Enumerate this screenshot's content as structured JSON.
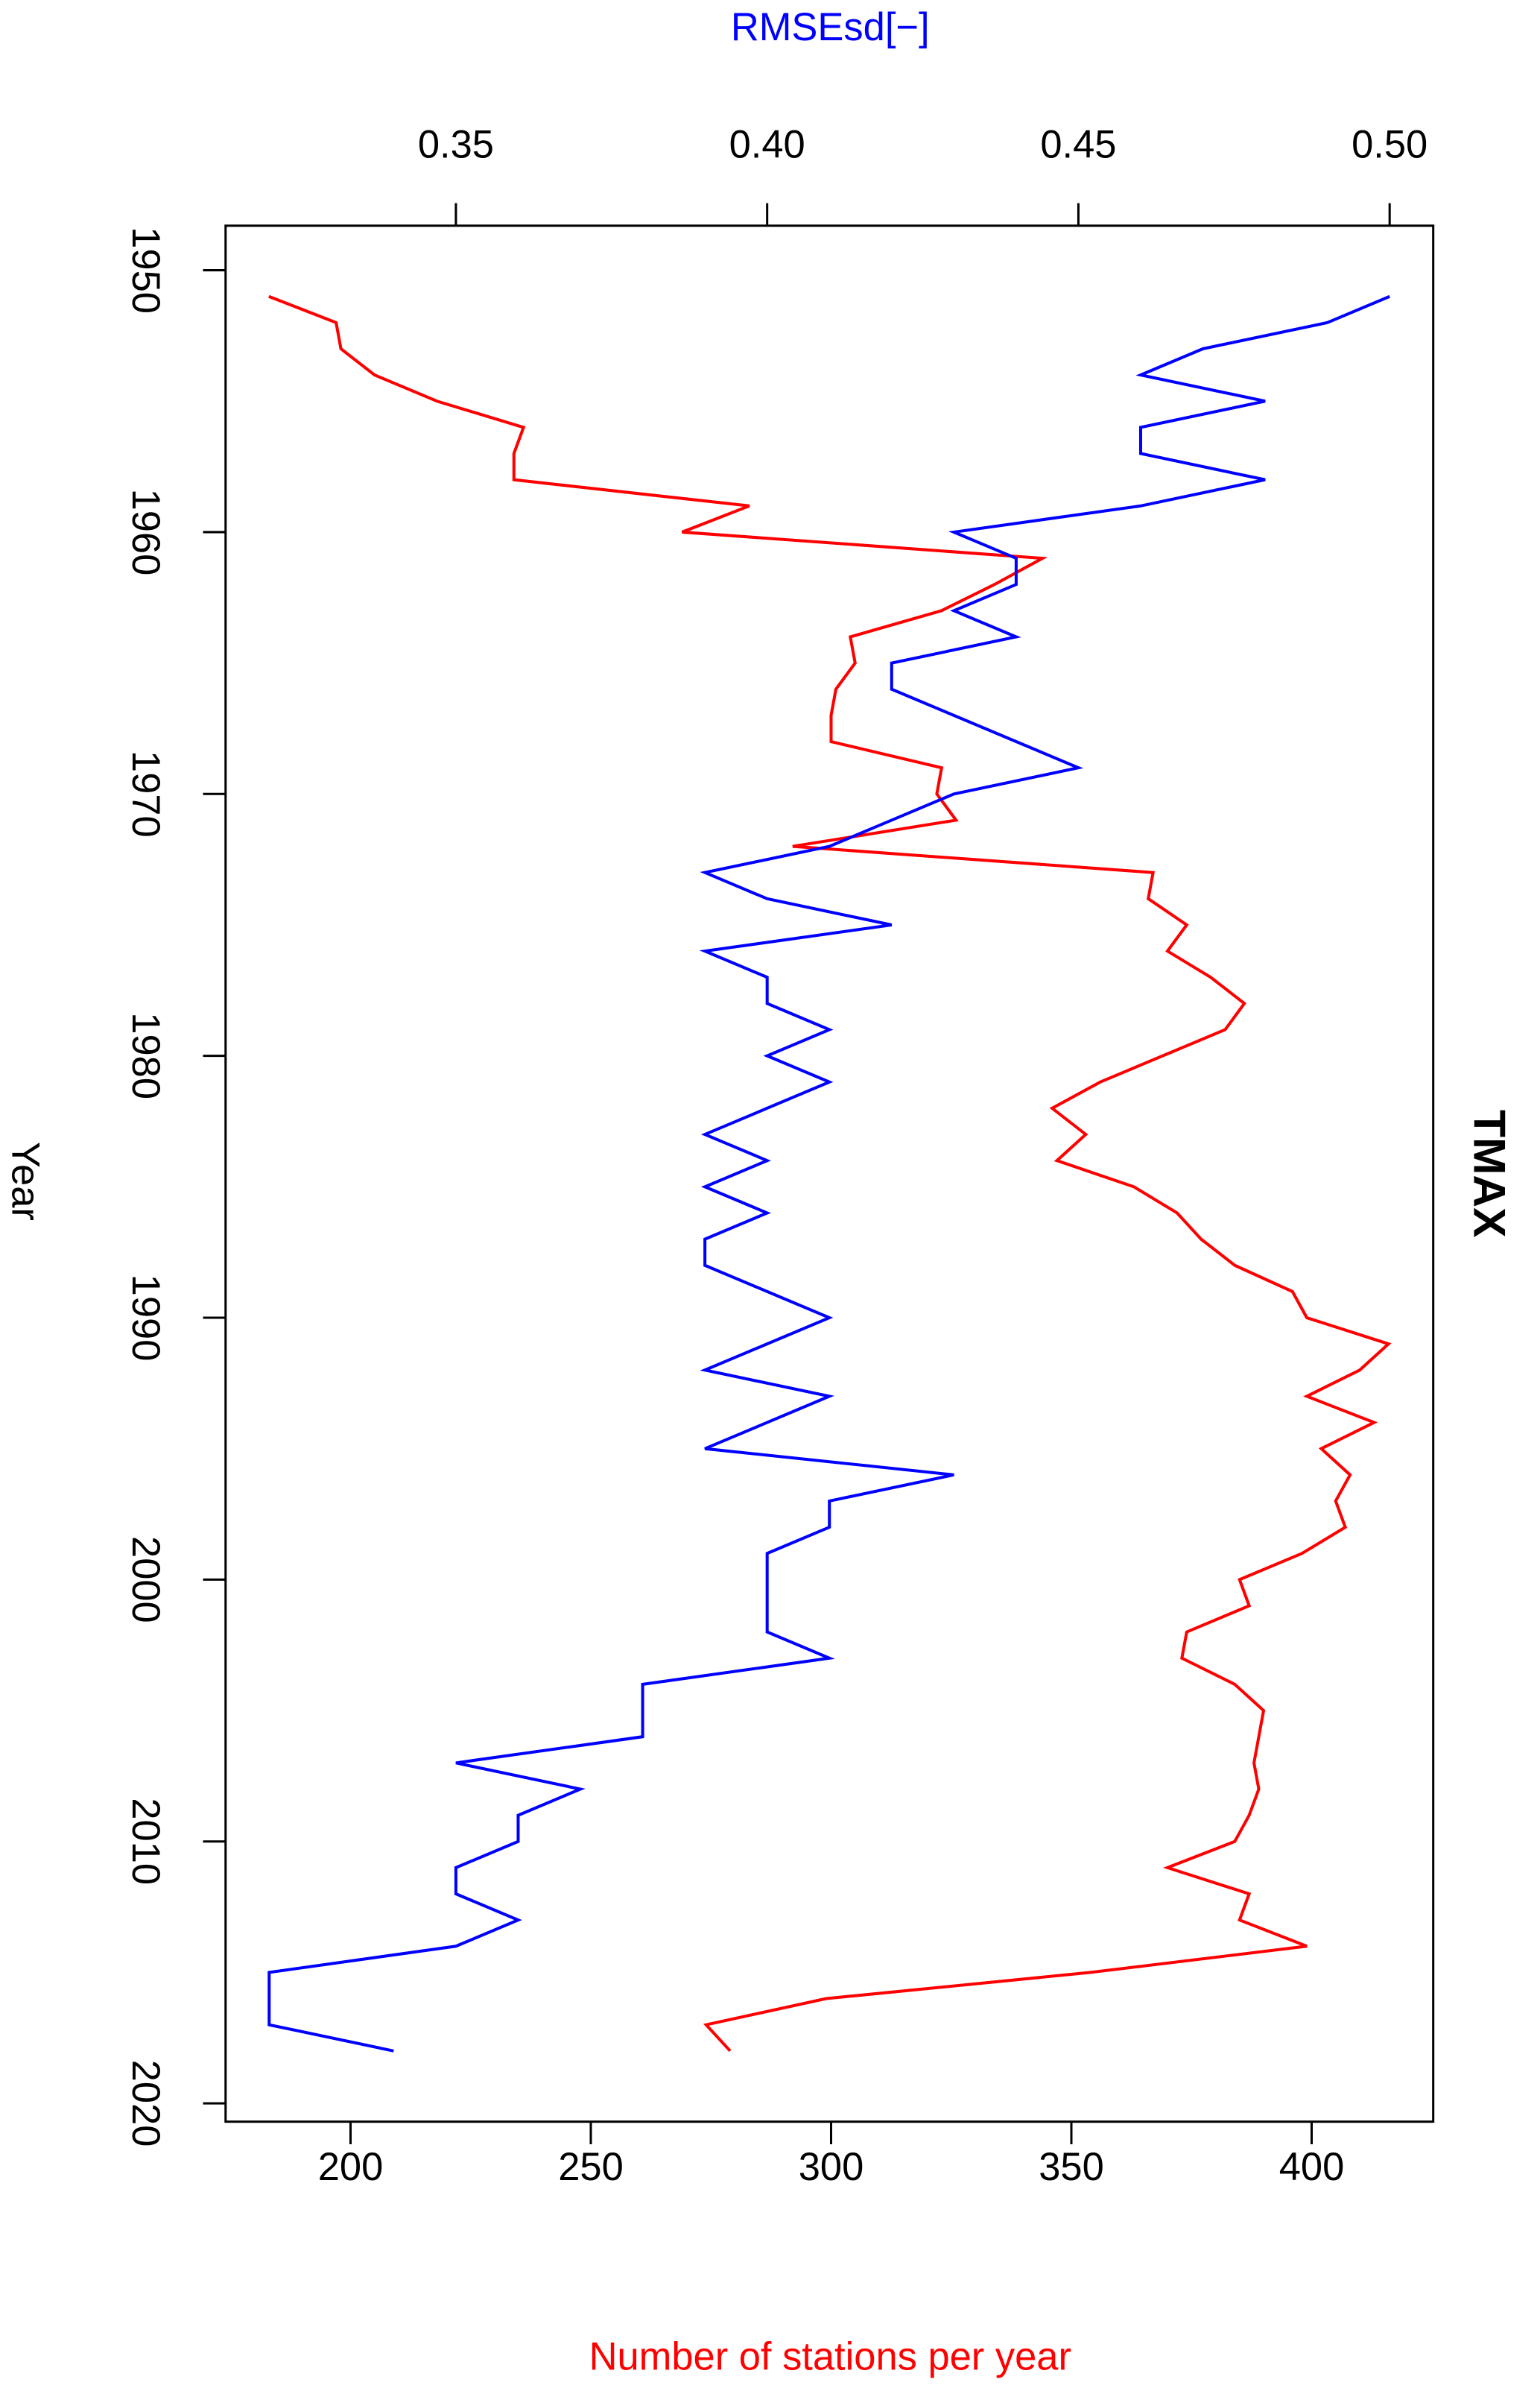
{
  "chart_data": {
    "type": "line",
    "title": "TMAX",
    "xlabel": "Year",
    "ylabel": "Number of stations per year",
    "y2label": "RMSEsd[−]",
    "x": [
      1951,
      1952,
      1953,
      1954,
      1955,
      1956,
      1957,
      1958,
      1959,
      1960,
      1961,
      1962,
      1963,
      1964,
      1965,
      1966,
      1967,
      1968,
      1969,
      1970,
      1971,
      1972,
      1973,
      1974,
      1975,
      1976,
      1977,
      1978,
      1979,
      1980,
      1981,
      1982,
      1983,
      1984,
      1985,
      1986,
      1987,
      1988,
      1989,
      1990,
      1991,
      1992,
      1993,
      1994,
      1995,
      1996,
      1997,
      1998,
      1999,
      2000,
      2001,
      2002,
      2003,
      2004,
      2005,
      2006,
      2007,
      2008,
      2009,
      2010,
      2011,
      2012,
      2013,
      2014,
      2015,
      2016,
      2017,
      2018
    ],
    "series": [
      {
        "name": "Number of stations per year",
        "color": "#ff0000",
        "axis": "y",
        "values": [
          183,
          197,
          198,
          205,
          218,
          236,
          234,
          234,
          283,
          269,
          344,
          334,
          323,
          304,
          305,
          301,
          300,
          300,
          323,
          322,
          326,
          292,
          367,
          366,
          374,
          370,
          379,
          386,
          382,
          369,
          356,
          346,
          353,
          347,
          363,
          372,
          377,
          384,
          396,
          399,
          416,
          410,
          399,
          413,
          402,
          408,
          405,
          407,
          398,
          385,
          387,
          374,
          373,
          384,
          390,
          389,
          388,
          389,
          387,
          384,
          370,
          387,
          385,
          399,
          354,
          299,
          274,
          279
        ]
      },
      {
        "name": "RMSEsd[−]",
        "color": "#0000ff",
        "axis": "y2",
        "values": [
          0.5,
          0.49,
          0.47,
          0.46,
          0.48,
          0.46,
          0.46,
          0.48,
          0.46,
          0.43,
          0.44,
          0.44,
          0.43,
          0.44,
          0.42,
          0.42,
          0.43,
          0.44,
          0.45,
          0.43,
          0.42,
          0.41,
          0.39,
          0.4,
          0.42,
          0.39,
          0.4,
          0.4,
          0.41,
          0.4,
          0.41,
          0.4,
          0.39,
          0.4,
          0.39,
          0.4,
          0.39,
          0.39,
          0.4,
          0.41,
          0.4,
          0.39,
          0.41,
          0.4,
          0.39,
          0.43,
          0.41,
          0.41,
          0.4,
          0.4,
          0.4,
          0.4,
          0.41,
          0.38,
          0.38,
          0.38,
          0.35,
          0.37,
          0.36,
          0.36,
          0.35,
          0.35,
          0.36,
          0.35,
          0.32,
          0.32,
          0.32,
          0.34
        ]
      }
    ],
    "xlim": [
      1948.3,
      2020.7
    ],
    "xticks": [
      1950,
      1960,
      1970,
      1980,
      1990,
      2000,
      2010,
      2020
    ],
    "ylim": [
      174,
      425.3
    ],
    "yticks": [
      200,
      250,
      300,
      350,
      400
    ],
    "y2lim": [
      0.313,
      0.507
    ],
    "y2ticks": [
      0.35,
      {
        "value": 0.4,
        "label": "0.40"
      },
      0.45,
      {
        "value": 0.5,
        "label": "0.50"
      }
    ],
    "grid": false
  }
}
